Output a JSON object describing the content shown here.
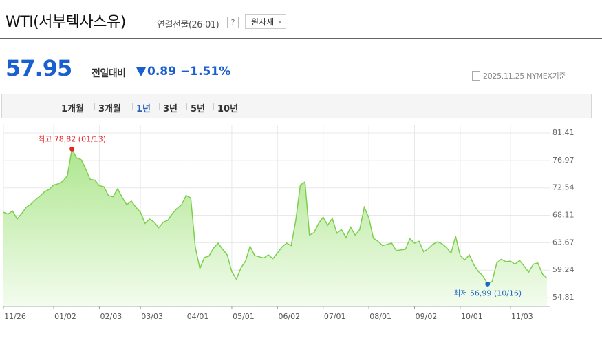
{
  "header": {
    "title": "WTI(서부텍사스유)",
    "subtitle": "연결선물(26-01)",
    "help": "?",
    "button": "원자재"
  },
  "quote": {
    "price": "57.95",
    "change_label": "전일대비",
    "change": "0.89",
    "rate": "−1.51%",
    "date": "2025.11.25 NYMEX기준"
  },
  "tabs": {
    "items": [
      "1개월",
      "3개월",
      "1년",
      "3년",
      "5년",
      "10년"
    ],
    "active": "1년"
  },
  "chart_data": {
    "type": "area",
    "categories": [
      "11/26",
      null,
      null,
      null,
      null,
      null,
      null,
      null,
      null,
      null,
      null,
      "01/02",
      null,
      null,
      null,
      null,
      null,
      null,
      null,
      null,
      null,
      "02/03",
      null,
      null,
      null,
      null,
      null,
      null,
      null,
      null,
      "03/03",
      null,
      null,
      null,
      null,
      null,
      null,
      null,
      null,
      null,
      "04/01",
      null,
      null,
      null,
      null,
      null,
      null,
      null,
      null,
      null,
      "05/01",
      null,
      null,
      null,
      null,
      null,
      null,
      null,
      null,
      null,
      "06/02",
      null,
      null,
      null,
      null,
      null,
      null,
      null,
      null,
      null,
      "07/01",
      null,
      null,
      null,
      null,
      null,
      null,
      null,
      null,
      null,
      "08/01",
      null,
      null,
      null,
      null,
      null,
      null,
      null,
      null,
      null,
      "09/02",
      null,
      null,
      null,
      null,
      null,
      null,
      null,
      null,
      null,
      "10/01",
      null,
      null,
      null,
      null,
      null,
      null,
      null,
      null,
      null,
      null,
      "11/03",
      null,
      null,
      null,
      null,
      null,
      null,
      null,
      null
    ],
    "series": [
      {
        "name": "WTI",
        "color": "#7ccf4c",
        "values": [
          68.6,
          68.3,
          68.8,
          67.5,
          68.4,
          69.4,
          69.9,
          70.6,
          71.2,
          71.9,
          72.3,
          73.0,
          73.2,
          73.6,
          74.5,
          78.82,
          77.4,
          77.1,
          75.6,
          73.9,
          73.8,
          72.9,
          72.7,
          71.3,
          71.1,
          72.4,
          71.0,
          69.8,
          70.4,
          69.4,
          68.6,
          66.8,
          67.5,
          67.0,
          66.1,
          67.0,
          67.3,
          68.4,
          69.2,
          69.8,
          71.3,
          70.9,
          63.0,
          59.5,
          61.3,
          61.5,
          62.8,
          63.6,
          62.6,
          61.7,
          59.0,
          57.8,
          59.6,
          60.7,
          63.1,
          61.6,
          61.4,
          61.2,
          61.7,
          61.1,
          62.0,
          63.0,
          63.6,
          63.2,
          67.3,
          73.0,
          73.5,
          64.9,
          65.3,
          66.8,
          67.8,
          66.5,
          67.6,
          65.2,
          65.8,
          64.5,
          66.2,
          64.9,
          65.8,
          69.4,
          67.7,
          64.4,
          63.9,
          63.2,
          63.4,
          63.6,
          62.4,
          62.5,
          62.6,
          64.3,
          63.6,
          63.9,
          62.2,
          62.7,
          63.4,
          63.8,
          63.5,
          62.9,
          62.0,
          64.7,
          61.6,
          60.9,
          61.7,
          60.1,
          59.0,
          58.3,
          56.99,
          57.4,
          60.4,
          61.0,
          60.6,
          60.7,
          60.2,
          60.8,
          59.9,
          58.9,
          60.2,
          60.4,
          58.6,
          57.95
        ]
      }
    ],
    "ylim": [
      54.81,
      81.41
    ],
    "yticks": [
      {
        "value": 81.41,
        "label": "81,41"
      },
      {
        "value": 76.97,
        "label": "76,97"
      },
      {
        "value": 72.54,
        "label": "72,54"
      },
      {
        "value": 68.11,
        "label": "68,11"
      },
      {
        "value": 63.67,
        "label": "63,67"
      },
      {
        "value": 59.24,
        "label": "59,24"
      },
      {
        "value": 54.81,
        "label": "54,81"
      }
    ],
    "grid": true,
    "annotations": [
      {
        "text": "최고 78,82 (01/13)",
        "value": 78.82,
        "color": "#e8242a"
      },
      {
        "text": "최저 56,99 (10/16)",
        "value": 56.99,
        "color": "#1a66cc"
      }
    ]
  }
}
